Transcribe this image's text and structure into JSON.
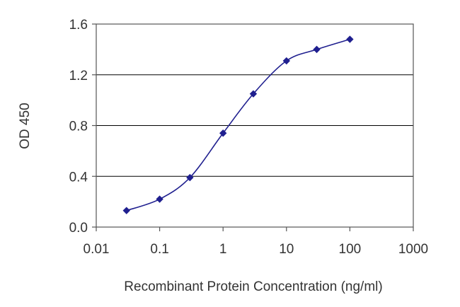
{
  "chart_data": {
    "type": "line",
    "xlabel": "Recombinant Protein Concentration (ng/ml)",
    "ylabel": "OD 450",
    "x_scale": "log",
    "xlim": [
      0.01,
      1000
    ],
    "ylim": [
      0.0,
      1.6
    ],
    "x_ticks": [
      0.01,
      0.1,
      1,
      10,
      100,
      1000
    ],
    "x_tick_labels": [
      "0.01",
      "0.1",
      "1",
      "10",
      "100",
      "1000"
    ],
    "y_ticks": [
      0.0,
      0.4,
      0.8,
      1.2,
      1.6
    ],
    "y_tick_labels": [
      "0.0",
      "0.4",
      "0.8",
      "1.2",
      "1.6"
    ],
    "grid": "horizontal",
    "legend": "none",
    "colors": {
      "series": "#1f1f8f",
      "gridline": "#000000",
      "frame": "#555555",
      "text": "#333333"
    },
    "series": [
      {
        "x": [
          0.03,
          0.1,
          0.3,
          1,
          3,
          10,
          30,
          100
        ],
        "y": [
          0.13,
          0.22,
          0.39,
          0.74,
          1.05,
          1.31,
          1.4,
          1.48
        ]
      }
    ]
  }
}
